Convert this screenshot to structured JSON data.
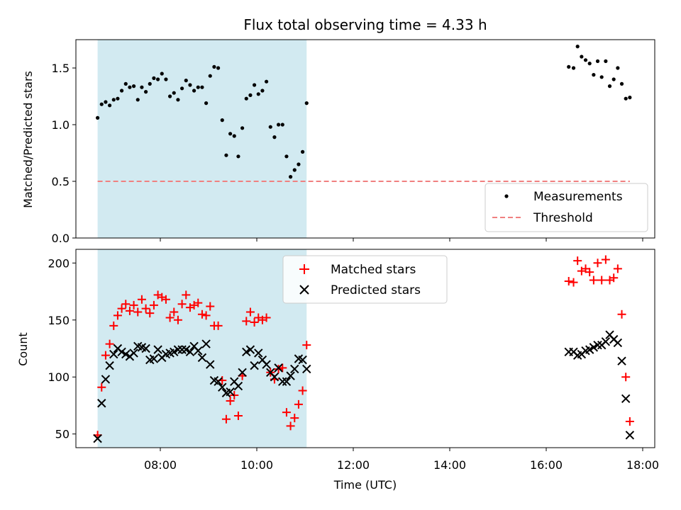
{
  "chart_data": [
    {
      "type": "scatter",
      "title": "Flux total observing time = 4.33 h",
      "xlabel": "",
      "ylabel": "Matched/Predicted stars",
      "xlim": [
        "06:15",
        "18:15"
      ],
      "ylim": [
        0,
        1.75
      ],
      "yticks": [
        "0.0",
        "0.5",
        "1.0",
        "1.5"
      ],
      "grid": false,
      "legend_position": "lower-right",
      "shaded_region": {
        "from": "06:42",
        "to": "11:02",
        "color": "#add8e6"
      },
      "series": [
        {
          "name": "Measurements",
          "color": "#000000",
          "marker": "dot",
          "points": [
            [
              "06:42",
              1.06
            ],
            [
              "06:47",
              1.18
            ],
            [
              "06:52",
              1.2
            ],
            [
              "06:57",
              1.17
            ],
            [
              "07:02",
              1.22
            ],
            [
              "07:07",
              1.23
            ],
            [
              "07:12",
              1.3
            ],
            [
              "07:17",
              1.36
            ],
            [
              "07:22",
              1.33
            ],
            [
              "07:27",
              1.34
            ],
            [
              "07:32",
              1.22
            ],
            [
              "07:37",
              1.33
            ],
            [
              "07:42",
              1.29
            ],
            [
              "07:47",
              1.36
            ],
            [
              "07:52",
              1.41
            ],
            [
              "07:57",
              1.4
            ],
            [
              "08:02",
              1.45
            ],
            [
              "08:07",
              1.4
            ],
            [
              "08:12",
              1.25
            ],
            [
              "08:17",
              1.28
            ],
            [
              "08:22",
              1.22
            ],
            [
              "08:27",
              1.32
            ],
            [
              "08:32",
              1.39
            ],
            [
              "08:37",
              1.35
            ],
            [
              "08:42",
              1.3
            ],
            [
              "08:47",
              1.33
            ],
            [
              "08:52",
              1.33
            ],
            [
              "08:57",
              1.19
            ],
            [
              "09:02",
              1.43
            ],
            [
              "09:07",
              1.51
            ],
            [
              "09:12",
              1.5
            ],
            [
              "09:17",
              1.04
            ],
            [
              "09:22",
              0.73
            ],
            [
              "09:27",
              0.92
            ],
            [
              "09:32",
              0.9
            ],
            [
              "09:37",
              0.72
            ],
            [
              "09:42",
              0.97
            ],
            [
              "09:47",
              1.23
            ],
            [
              "09:52",
              1.26
            ],
            [
              "09:57",
              1.35
            ],
            [
              "10:02",
              1.27
            ],
            [
              "10:07",
              1.3
            ],
            [
              "10:12",
              1.38
            ],
            [
              "10:17",
              0.98
            ],
            [
              "10:22",
              0.89
            ],
            [
              "10:27",
              1.0
            ],
            [
              "10:32",
              1.0
            ],
            [
              "10:37",
              0.72
            ],
            [
              "10:42",
              0.54
            ],
            [
              "10:47",
              0.6
            ],
            [
              "10:52",
              0.65
            ],
            [
              "10:57",
              0.76
            ],
            [
              "11:02",
              1.19
            ],
            [
              "16:28",
              1.51
            ],
            [
              "16:34",
              1.5
            ],
            [
              "16:39",
              1.69
            ],
            [
              "16:44",
              1.6
            ],
            [
              "16:49",
              1.57
            ],
            [
              "16:54",
              1.54
            ],
            [
              "16:59",
              1.44
            ],
            [
              "17:04",
              1.56
            ],
            [
              "17:09",
              1.42
            ],
            [
              "17:14",
              1.56
            ],
            [
              "17:19",
              1.34
            ],
            [
              "17:24",
              1.4
            ],
            [
              "17:29",
              1.5
            ],
            [
              "17:34",
              1.36
            ],
            [
              "17:39",
              1.23
            ],
            [
              "17:44",
              1.24
            ]
          ]
        },
        {
          "name": "Threshold",
          "color": "#f08080",
          "line": "dashed",
          "points": [
            [
              "06:42",
              0.5
            ],
            [
              "17:44",
              0.5
            ]
          ]
        }
      ]
    },
    {
      "type": "scatter",
      "title": "",
      "xlabel": "Time (UTC)",
      "ylabel": "Count",
      "xlim": [
        "06:15",
        "18:15"
      ],
      "ylim": [
        38,
        212
      ],
      "xticks": [
        "08:00",
        "10:00",
        "12:00",
        "14:00",
        "16:00",
        "18:00"
      ],
      "yticks": [
        "50",
        "100",
        "150",
        "200"
      ],
      "grid": false,
      "legend_position": "upper-center",
      "shaded_region": {
        "from": "06:42",
        "to": "11:02",
        "color": "#add8e6"
      },
      "series": [
        {
          "name": "Matched stars",
          "color": "#ff0000",
          "marker": "plus",
          "points": [
            [
              "06:42",
              49
            ],
            [
              "06:47",
              91
            ],
            [
              "06:52",
              119
            ],
            [
              "06:57",
              129
            ],
            [
              "07:02",
              145
            ],
            [
              "07:07",
              154
            ],
            [
              "07:12",
              160
            ],
            [
              "07:17",
              164
            ],
            [
              "07:22",
              158
            ],
            [
              "07:27",
              163
            ],
            [
              "07:32",
              157
            ],
            [
              "07:37",
              168
            ],
            [
              "07:42",
              160
            ],
            [
              "07:47",
              156
            ],
            [
              "07:52",
              163
            ],
            [
              "07:57",
              172
            ],
            [
              "08:02",
              170
            ],
            [
              "08:07",
              168
            ],
            [
              "08:12",
              152
            ],
            [
              "08:17",
              157
            ],
            [
              "08:22",
              150
            ],
            [
              "08:27",
              164
            ],
            [
              "08:32",
              172
            ],
            [
              "08:37",
              161
            ],
            [
              "08:42",
              163
            ],
            [
              "08:47",
              165
            ],
            [
              "08:52",
              155
            ],
            [
              "08:57",
              154
            ],
            [
              "09:02",
              162
            ],
            [
              "09:07",
              145
            ],
            [
              "09:12",
              145
            ],
            [
              "09:17",
              97
            ],
            [
              "09:22",
              63
            ],
            [
              "09:27",
              79
            ],
            [
              "09:32",
              84
            ],
            [
              "09:37",
              66
            ],
            [
              "09:42",
              101
            ],
            [
              "09:47",
              149
            ],
            [
              "09:52",
              157
            ],
            [
              "09:57",
              148
            ],
            [
              "10:02",
              152
            ],
            [
              "10:07",
              150
            ],
            [
              "10:12",
              152
            ],
            [
              "10:17",
              104
            ],
            [
              "10:22",
              98
            ],
            [
              "10:27",
              107
            ],
            [
              "10:32",
              108
            ],
            [
              "10:37",
              69
            ],
            [
              "10:42",
              57
            ],
            [
              "10:47",
              64
            ],
            [
              "10:52",
              76
            ],
            [
              "10:57",
              88
            ],
            [
              "11:02",
              128
            ],
            [
              "16:28",
              184
            ],
            [
              "16:34",
              183
            ],
            [
              "16:39",
              202
            ],
            [
              "16:44",
              193
            ],
            [
              "16:49",
              195
            ],
            [
              "16:54",
              192
            ],
            [
              "16:59",
              185
            ],
            [
              "17:04",
              200
            ],
            [
              "17:09",
              185
            ],
            [
              "17:14",
              203
            ],
            [
              "17:19",
              185
            ],
            [
              "17:24",
              187
            ],
            [
              "17:29",
              195
            ],
            [
              "17:34",
              155
            ],
            [
              "17:39",
              100
            ],
            [
              "17:44",
              61
            ]
          ]
        },
        {
          "name": "Predicted stars",
          "color": "#000000",
          "marker": "x",
          "points": [
            [
              "06:42",
              46
            ],
            [
              "06:47",
              77
            ],
            [
              "06:52",
              98
            ],
            [
              "06:57",
              110
            ],
            [
              "07:02",
              120
            ],
            [
              "07:07",
              125
            ],
            [
              "07:12",
              122
            ],
            [
              "07:17",
              120
            ],
            [
              "07:22",
              118
            ],
            [
              "07:27",
              121
            ],
            [
              "07:32",
              127
            ],
            [
              "07:37",
              126
            ],
            [
              "07:42",
              125
            ],
            [
              "07:47",
              115
            ],
            [
              "07:52",
              116
            ],
            [
              "07:57",
              124
            ],
            [
              "08:02",
              117
            ],
            [
              "08:07",
              120
            ],
            [
              "08:12",
              121
            ],
            [
              "08:17",
              122
            ],
            [
              "08:22",
              124
            ],
            [
              "08:27",
              124
            ],
            [
              "08:32",
              124
            ],
            [
              "08:37",
              122
            ],
            [
              "08:42",
              127
            ],
            [
              "08:47",
              123
            ],
            [
              "08:52",
              117
            ],
            [
              "08:57",
              129
            ],
            [
              "09:02",
              111
            ],
            [
              "09:07",
              97
            ],
            [
              "09:12",
              96
            ],
            [
              "09:17",
              91
            ],
            [
              "09:22",
              86
            ],
            [
              "09:27",
              87
            ],
            [
              "09:32",
              96
            ],
            [
              "09:37",
              92
            ],
            [
              "09:42",
              104
            ],
            [
              "09:47",
              122
            ],
            [
              "09:52",
              124
            ],
            [
              "09:57",
              110
            ],
            [
              "10:02",
              121
            ],
            [
              "10:07",
              115
            ],
            [
              "10:12",
              111
            ],
            [
              "10:17",
              104
            ],
            [
              "10:22",
              100
            ],
            [
              "10:27",
              108
            ],
            [
              "10:32",
              96
            ],
            [
              "10:37",
              96
            ],
            [
              "10:42",
              101
            ],
            [
              "10:47",
              107
            ],
            [
              "10:52",
              116
            ],
            [
              "10:57",
              115
            ],
            [
              "11:02",
              107
            ],
            [
              "16:28",
              122
            ],
            [
              "16:34",
              122
            ],
            [
              "16:39",
              119
            ],
            [
              "16:44",
              120
            ],
            [
              "16:49",
              123
            ],
            [
              "16:54",
              124
            ],
            [
              "16:59",
              126
            ],
            [
              "17:04",
              128
            ],
            [
              "17:09",
              128
            ],
            [
              "17:14",
              131
            ],
            [
              "17:19",
              137
            ],
            [
              "17:24",
              133
            ],
            [
              "17:29",
              130
            ],
            [
              "17:34",
              114
            ],
            [
              "17:39",
              81
            ],
            [
              "17:44",
              49
            ]
          ]
        }
      ]
    }
  ]
}
